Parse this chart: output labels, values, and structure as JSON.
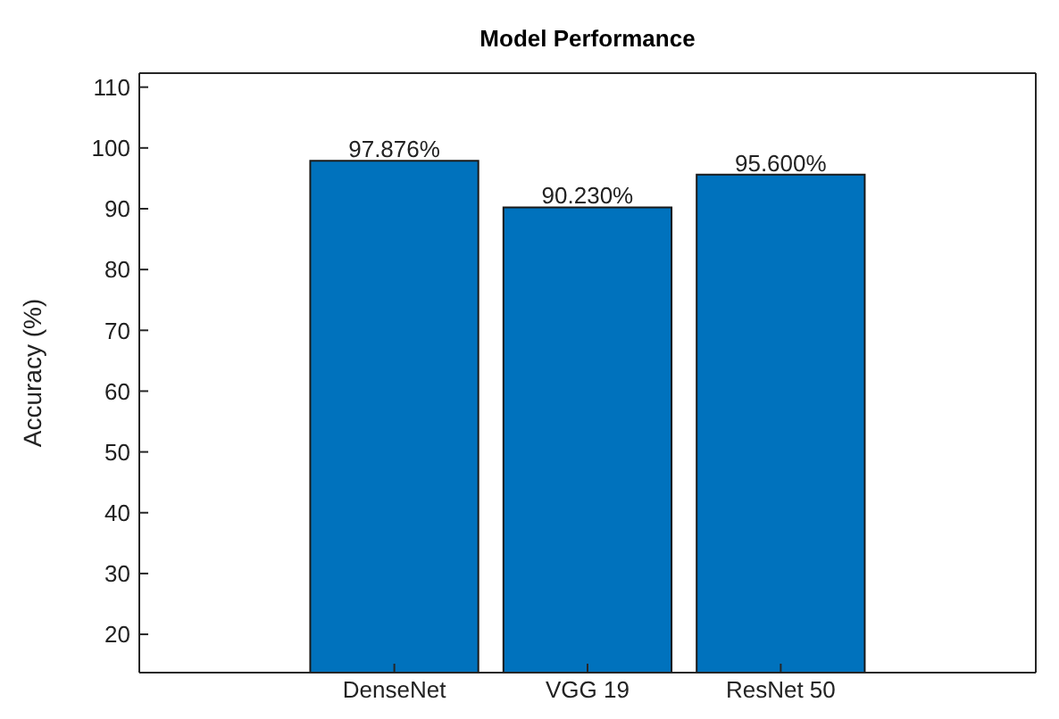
{
  "chart_data": {
    "type": "bar",
    "title": "Model Performance",
    "ylabel": "Accuracy (%)",
    "categories": [
      "DenseNet",
      "VGG 19",
      "ResNet 50"
    ],
    "values": [
      97.876,
      90.23,
      95.6
    ],
    "value_labels": [
      "97.876%",
      "90.230%",
      "95.600%"
    ],
    "color": "#0072bd",
    "ylim": [
      13.7,
      112.3
    ],
    "yticks": [
      20,
      30,
      40,
      50,
      60,
      70,
      80,
      90,
      100,
      110
    ],
    "grid": false
  }
}
